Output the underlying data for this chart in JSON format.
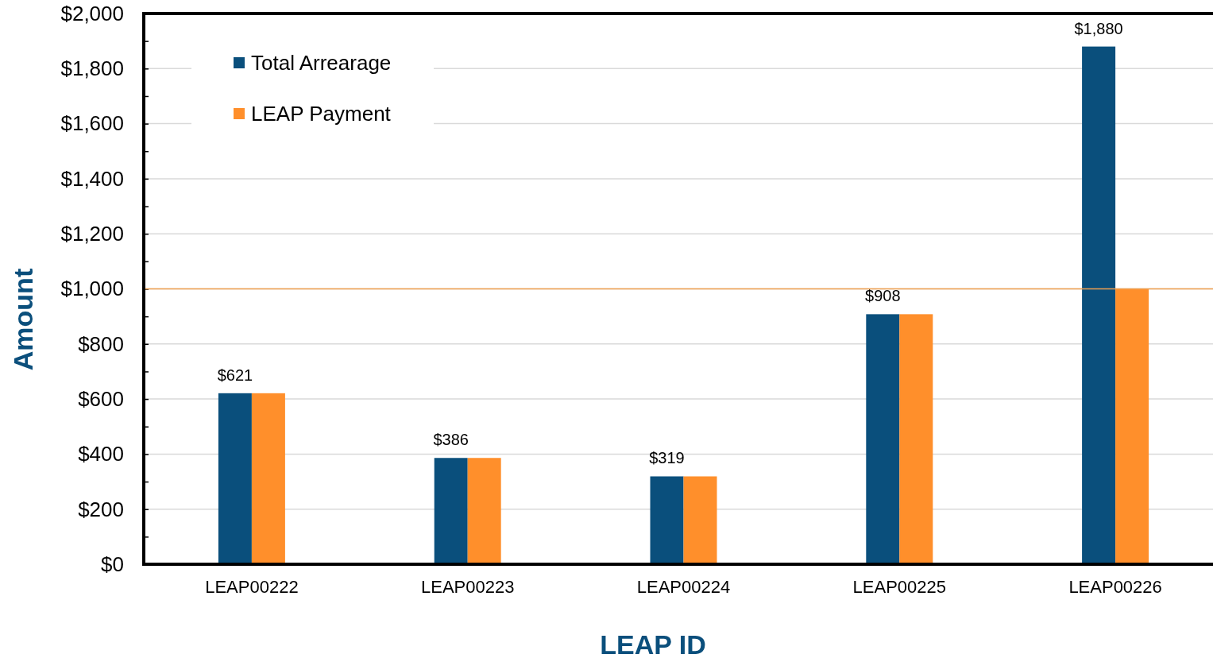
{
  "chart_data": {
    "type": "bar",
    "xlabel": "LEAP ID",
    "ylabel": "Amount",
    "categories": [
      "LEAP00222",
      "LEAP00223",
      "LEAP00224",
      "LEAP00225",
      "LEAP00226"
    ],
    "series": [
      {
        "name": "Total Arrearage",
        "color": "#0a4f7c",
        "values": [
          621,
          386,
          319,
          908,
          1880
        ],
        "value_labels": [
          "$621",
          "$386",
          "$319",
          "$908",
          "$1,880"
        ]
      },
      {
        "name": "LEAP Payment",
        "color": "#ff8f2b",
        "values": [
          621,
          386,
          319,
          908,
          1000
        ]
      }
    ],
    "ylim": [
      0,
      2000
    ],
    "yticks": [
      {
        "value": 0,
        "label": "$0"
      },
      {
        "value": 100,
        "label": null
      },
      {
        "value": 200,
        "label": "$200"
      },
      {
        "value": 300,
        "label": null
      },
      {
        "value": 400,
        "label": "$400"
      },
      {
        "value": 500,
        "label": null
      },
      {
        "value": 600,
        "label": "$600"
      },
      {
        "value": 700,
        "label": null
      },
      {
        "value": 800,
        "label": "$800"
      },
      {
        "value": 900,
        "label": null
      },
      {
        "value": 1000,
        "label": "$1,000"
      },
      {
        "value": 1100,
        "label": null
      },
      {
        "value": 1200,
        "label": "$1,200"
      },
      {
        "value": 1300,
        "label": null
      },
      {
        "value": 1400,
        "label": "$1,400"
      },
      {
        "value": 1500,
        "label": null
      },
      {
        "value": 1600,
        "label": "$1,600"
      },
      {
        "value": 1700,
        "label": null
      },
      {
        "value": 1800,
        "label": "$1,800"
      },
      {
        "value": 1900,
        "label": null
      },
      {
        "value": 2000,
        "label": "$2,000"
      }
    ],
    "ref_lines": [
      {
        "axis": "y",
        "value": 1000,
        "color": "#f0a050"
      }
    ],
    "grid": "y",
    "legend": "top left"
  }
}
